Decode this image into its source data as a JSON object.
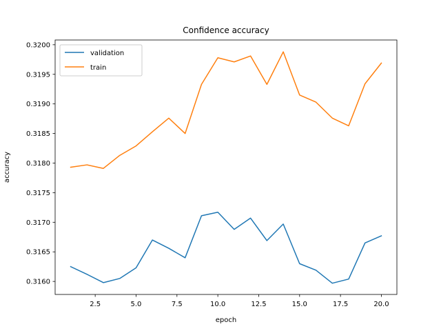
{
  "chart_data": {
    "type": "line",
    "title": "Confidence accuracy",
    "xlabel": "epoch",
    "ylabel": "accuracy",
    "xlim": [
      0.05,
      20.95
    ],
    "ylim": [
      0.31578,
      0.32008
    ],
    "x_ticks": [
      2.5,
      5.0,
      7.5,
      10.0,
      12.5,
      15.0,
      17.5,
      20.0
    ],
    "x_tick_labels": [
      "2.5",
      "5.0",
      "7.5",
      "10.0",
      "12.5",
      "15.0",
      "17.5",
      "20.0"
    ],
    "y_ticks": [
      0.316,
      0.3165,
      0.317,
      0.3175,
      0.318,
      0.3185,
      0.319,
      0.3195,
      0.32
    ],
    "y_tick_labels": [
      "0.3160",
      "0.3165",
      "0.3170",
      "0.3175",
      "0.3180",
      "0.3185",
      "0.3190",
      "0.3195",
      "0.3200"
    ],
    "grid": false,
    "legend_position": "top-left",
    "x": [
      1,
      2,
      3,
      4,
      5,
      6,
      7,
      8,
      9,
      10,
      11,
      12,
      13,
      14,
      15,
      16,
      17,
      18,
      19,
      20
    ],
    "series": [
      {
        "name": "validation",
        "color": "#1f77b4",
        "values": [
          0.31625,
          0.31612,
          0.31598,
          0.31605,
          0.31623,
          0.3167,
          0.31656,
          0.3164,
          0.31711,
          0.31717,
          0.31688,
          0.31707,
          0.31669,
          0.31697,
          0.3163,
          0.31619,
          0.31597,
          0.31604,
          0.31665,
          0.31677
        ]
      },
      {
        "name": "train",
        "color": "#ff7f0e",
        "values": [
          0.31793,
          0.31797,
          0.31791,
          0.31813,
          0.31829,
          0.31853,
          0.31876,
          0.3185,
          0.31933,
          0.31978,
          0.31971,
          0.31981,
          0.31933,
          0.31988,
          0.31915,
          0.31903,
          0.31876,
          0.31863,
          0.31934,
          0.31969
        ]
      }
    ]
  }
}
